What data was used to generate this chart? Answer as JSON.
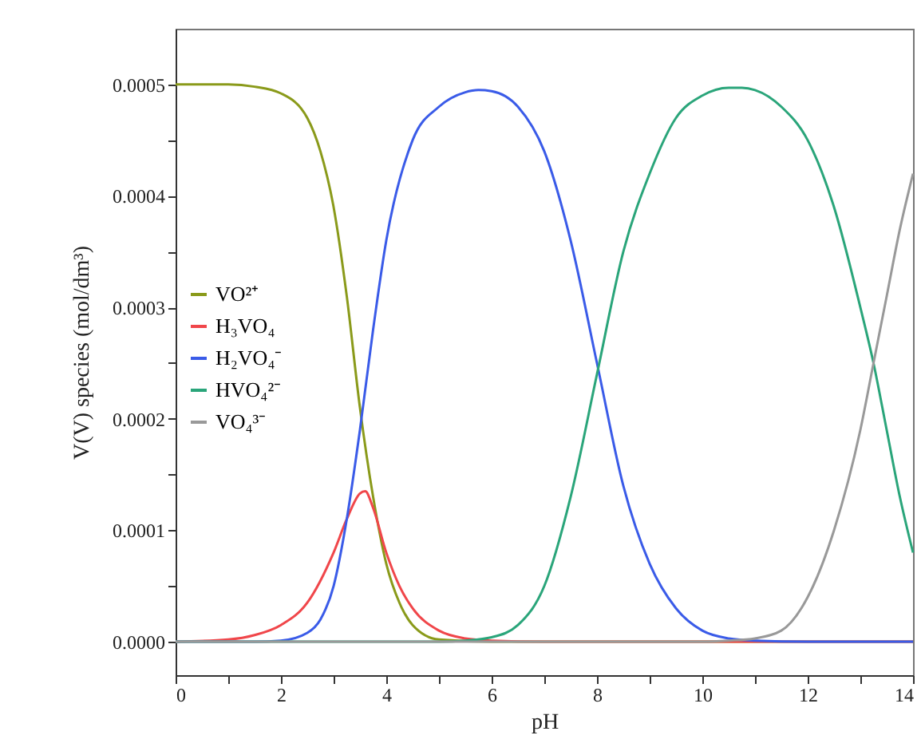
{
  "chart_data": {
    "type": "line",
    "xlabel": "pH",
    "ylabel": "V(V) species (mol/dm³)",
    "xlim": [
      0,
      14
    ],
    "xticks": [
      0,
      {
        "value": 1,
        "label": null
      },
      2,
      {
        "value": 3,
        "label": null
      },
      4,
      {
        "value": 5,
        "label": null
      },
      6,
      {
        "value": 7,
        "label": null
      },
      8,
      {
        "value": 9,
        "label": null
      },
      10,
      {
        "value": 11,
        "label": null
      },
      12,
      {
        "value": 13,
        "label": null
      },
      14
    ],
    "ylim": [
      -3e-05,
      0.00055
    ],
    "yticks": [
      {
        "value": 0,
        "label": "0.0000"
      },
      {
        "value": 5e-05,
        "label": null
      },
      {
        "value": 0.0001,
        "label": "0.0001"
      },
      {
        "value": 0.00015,
        "label": null
      },
      {
        "value": 0.0002,
        "label": "0.0002"
      },
      {
        "value": 0.00025,
        "label": null
      },
      {
        "value": 0.0003,
        "label": "0.0003"
      },
      {
        "value": 0.00035,
        "label": null
      },
      {
        "value": 0.0004,
        "label": "0.0004"
      },
      {
        "value": 0.00045,
        "label": null
      },
      {
        "value": 0.0005,
        "label": "0.0005"
      }
    ],
    "grid": false,
    "legend": "left",
    "marker": "none",
    "line_style": "solid",
    "series": [
      {
        "name": "VO²⁺",
        "color": "#8a9a1a",
        "x": [
          0,
          1,
          1.5,
          2,
          2.5,
          2.75,
          3,
          3.25,
          3.5,
          3.75,
          4,
          4.25,
          4.5,
          5,
          6,
          14
        ],
        "values": [
          0.0005,
          0.0005,
          0.000498,
          0.000492,
          0.00047,
          0.00044,
          0.00039,
          0.00031,
          0.00021,
          0.00013,
          7e-05,
          3.5e-05,
          1.5e-05,
          2e-06,
          0,
          0
        ]
      },
      {
        "name": "H₃VO₄",
        "color": "#f0464a",
        "x": [
          0,
          1,
          1.5,
          2,
          2.5,
          3,
          3.25,
          3.5,
          3.6,
          3.75,
          4,
          4.25,
          4.5,
          5,
          5.5,
          6,
          7,
          14
        ],
        "values": [
          0,
          2e-06,
          6e-06,
          1.5e-05,
          3.5e-05,
          8e-05,
          0.00011,
          0.000133,
          0.000135,
          0.00012,
          8e-05,
          5e-05,
          3e-05,
          1e-05,
          3e-06,
          1e-06,
          0,
          0
        ]
      },
      {
        "name": "H₂VO₄⁻",
        "color": "#3a5be8",
        "x": [
          0,
          1.5,
          2,
          2.5,
          2.75,
          3,
          3.25,
          3.5,
          3.75,
          4,
          4.5,
          5,
          5.5,
          5.75,
          6,
          6.5,
          7,
          7.5,
          8,
          8.5,
          9,
          9.5,
          10,
          10.5,
          11,
          12,
          14
        ],
        "values": [
          0,
          0,
          1e-06,
          8e-06,
          2e-05,
          5e-05,
          0.00011,
          0.00019,
          0.00028,
          0.00036,
          0.00045,
          0.00048,
          0.000493,
          0.000495,
          0.000494,
          0.00048,
          0.00044,
          0.00036,
          0.00025,
          0.00014,
          7e-05,
          3e-05,
          1e-05,
          3e-06,
          1e-06,
          0,
          0
        ]
      },
      {
        "name": "HVO₄²⁻",
        "color": "#2aa57a",
        "x": [
          0,
          5,
          5.5,
          6,
          6.5,
          7,
          7.5,
          8,
          8.5,
          9,
          9.5,
          10,
          10.5,
          10.75,
          11,
          11.5,
          12,
          12.5,
          13,
          13.25,
          13.5,
          13.75,
          14
        ],
        "values": [
          0,
          0,
          1e-06,
          4e-06,
          1.5e-05,
          5e-05,
          0.00013,
          0.00024,
          0.00035,
          0.00042,
          0.00047,
          0.00049,
          0.000497,
          0.000497,
          0.000495,
          0.00048,
          0.00045,
          0.00039,
          0.0003,
          0.00025,
          0.00019,
          0.00013,
          8e-05
        ]
      },
      {
        "name": "VO₄³⁻",
        "color": "#999999",
        "x": [
          0,
          10,
          10.5,
          11,
          11.5,
          12,
          12.5,
          13,
          13.25,
          13.5,
          13.75,
          14
        ],
        "values": [
          0,
          0,
          1e-06,
          3e-06,
          1e-05,
          4e-05,
          0.0001,
          0.00019,
          0.00025,
          0.00031,
          0.00037,
          0.00042
        ]
      }
    ]
  }
}
